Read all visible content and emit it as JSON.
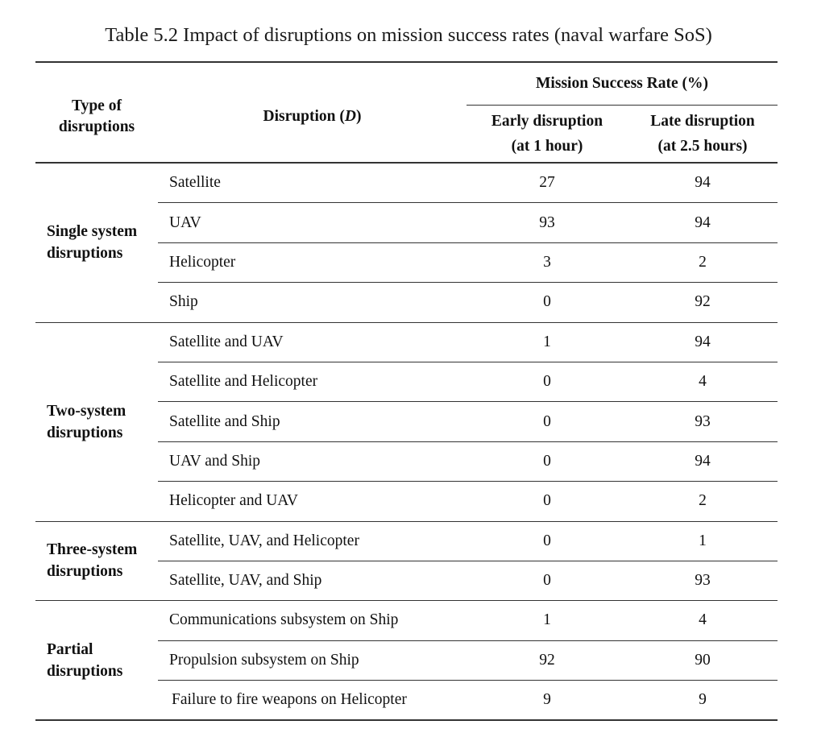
{
  "caption": "Table 5.2 Impact of disruptions on mission success rates (naval warfare SoS)",
  "header": {
    "type_of_disruptions": "Type of disruptions",
    "disruption_prefix": "Disruption (",
    "disruption_symbol": "D",
    "disruption_suffix": ")",
    "mission_success_rate": "Mission Success Rate (%)",
    "early_line1": "Early disruption",
    "early_line2": "(at 1 hour)",
    "late_line1": "Late disruption",
    "late_line2": "(at 2.5 hours)"
  },
  "groups": [
    {
      "label": "Single system disruptions",
      "rows": [
        {
          "disruption": "Satellite",
          "early": "27",
          "late": "94"
        },
        {
          "disruption": "UAV",
          "early": "93",
          "late": "94"
        },
        {
          "disruption": "Helicopter",
          "early": "3",
          "late": "2"
        },
        {
          "disruption": "Ship",
          "early": "0",
          "late": "92"
        }
      ]
    },
    {
      "label": "Two-system disruptions",
      "rows": [
        {
          "disruption": "Satellite and UAV",
          "early": "1",
          "late": "94"
        },
        {
          "disruption": "Satellite and Helicopter",
          "early": "0",
          "late": "4"
        },
        {
          "disruption": "Satellite and Ship",
          "early": "0",
          "late": "93"
        },
        {
          "disruption": "UAV and Ship",
          "early": "0",
          "late": "94"
        },
        {
          "disruption": "Helicopter and UAV",
          "early": "0",
          "late": "2"
        }
      ]
    },
    {
      "label": "Three-system disruptions",
      "rows": [
        {
          "disruption": "Satellite, UAV, and Helicopter",
          "early": "0",
          "late": "1"
        },
        {
          "disruption": "Satellite, UAV, and Ship",
          "early": "0",
          "late": "93"
        }
      ]
    },
    {
      "label": "Partial disruptions",
      "rows": [
        {
          "disruption": "Communications subsystem on Ship",
          "early": "1",
          "late": "4"
        },
        {
          "disruption": "Propulsion subsystem on Ship",
          "early": "92",
          "late": "90"
        },
        {
          "disruption": "Failure to fire weapons on Helicopter",
          "early": "9",
          "late": "9"
        }
      ]
    }
  ]
}
